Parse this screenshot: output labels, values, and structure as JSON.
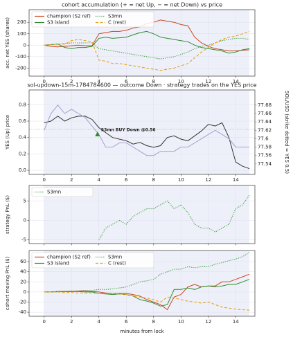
{
  "chart_data": [
    {
      "type": "line",
      "title": "cohort accumulation (+ = net Up, − = net Down) vs price",
      "ylabel": "acc. net YES (shares)",
      "xlim": [
        -1.1,
        15.4
      ],
      "xticks": [
        0,
        2,
        4,
        6,
        8,
        10,
        12,
        14
      ],
      "ylim": [
        -270,
        310
      ],
      "yticks": [
        -200,
        -100,
        0,
        100,
        200
      ],
      "grid": true,
      "legend": "upper left",
      "legend_columns": 2,
      "shade": [
        0,
        15
      ],
      "x": [
        0,
        0.5,
        1,
        1.5,
        2,
        2.5,
        3,
        3.5,
        4,
        4.5,
        5,
        5.5,
        6,
        6.5,
        7,
        7.5,
        8,
        8.5,
        9,
        9.5,
        10,
        10.5,
        11,
        11.5,
        12,
        12.5,
        13,
        13.5,
        14,
        14.5,
        15
      ],
      "series": [
        {
          "name": "champion (S2 ref)",
          "color": "#c8461e",
          "dash": "solid",
          "values": [
            0,
            -10,
            -15,
            -10,
            -5,
            0,
            -5,
            -5,
            100,
            110,
            120,
            120,
            130,
            150,
            160,
            190,
            200,
            220,
            210,
            200,
            180,
            170,
            70,
            20,
            -10,
            -30,
            -40,
            -50,
            -50,
            -45,
            -40
          ]
        },
        {
          "name": "S3 island",
          "color": "#2e8b2e",
          "dash": "solid",
          "values": [
            0,
            5,
            10,
            -20,
            -30,
            -20,
            -20,
            -10,
            60,
            70,
            60,
            65,
            70,
            90,
            110,
            120,
            100,
            70,
            60,
            50,
            40,
            30,
            0,
            -20,
            -30,
            -40,
            -50,
            -70,
            -60,
            -40,
            -30
          ]
        },
        {
          "name": "S3mn",
          "color": "#3a9a3a",
          "dash": "dotted",
          "values": [
            0,
            5,
            10,
            15,
            20,
            20,
            20,
            20,
            -30,
            -40,
            -50,
            -60,
            -70,
            -80,
            -90,
            -100,
            -110,
            -120,
            -110,
            -100,
            -80,
            -60,
            -30,
            -10,
            0,
            20,
            40,
            50,
            60,
            60,
            50
          ]
        },
        {
          "name": "C (rest)",
          "color": "#e8a317",
          "dash": "dashed",
          "values": [
            0,
            5,
            10,
            10,
            40,
            50,
            40,
            30,
            -130,
            -140,
            -160,
            -160,
            -170,
            -180,
            -190,
            -200,
            -210,
            -220,
            -210,
            -200,
            -180,
            -160,
            -110,
            -60,
            -20,
            20,
            50,
            70,
            80,
            100,
            120
          ]
        }
      ]
    },
    {
      "type": "line",
      "title": "sol-updown-15m-1784784600 — outcome Down · strategy trades on the YES price",
      "ylabel": "YES (Up) price",
      "xlim": [
        -1.1,
        15.4
      ],
      "xticks": [
        0,
        2,
        4,
        6,
        8,
        10,
        12,
        14
      ],
      "ylim": [
        -0.05,
        0.98
      ],
      "yticks": [
        {
          "value": 0,
          "label": "0.0"
        },
        0.2,
        0.4,
        0.6,
        0.8
      ],
      "y2label": "SOL/USD (strike dotted = YES 0.5)",
      "y2lim": [
        77.515,
        77.716
      ],
      "y2ticks": [
        77.54,
        77.56,
        77.58,
        77.6,
        77.62,
        77.64,
        77.66,
        77.68
      ],
      "grid": true,
      "shade": [
        0,
        15
      ],
      "reference_line": 0.5,
      "x": [
        0,
        0.5,
        1,
        1.5,
        2,
        2.5,
        3,
        3.5,
        4,
        4.5,
        5,
        5.5,
        6,
        6.5,
        7,
        7.5,
        8,
        8.5,
        9,
        9.5,
        10,
        10.5,
        11,
        11.5,
        12,
        12.5,
        13,
        13.5,
        14,
        14.5,
        15
      ],
      "series": [
        {
          "name": "YES",
          "color": "#333333",
          "dash": "solid",
          "values": [
            0.58,
            0.6,
            0.66,
            0.6,
            0.64,
            0.66,
            0.66,
            0.62,
            0.52,
            0.46,
            0.4,
            0.38,
            0.36,
            0.32,
            0.34,
            0.3,
            0.28,
            0.3,
            0.4,
            0.42,
            0.38,
            0.36,
            0.42,
            0.48,
            0.56,
            0.54,
            0.58,
            0.4,
            0.1,
            0.05,
            0.02
          ]
        },
        {
          "name": "SOL/USD",
          "color": "#a99bd0",
          "dash": "solid",
          "axis": "y2",
          "values": [
            77.62,
            77.66,
            77.68,
            77.66,
            77.67,
            77.66,
            77.65,
            77.63,
            77.61,
            77.58,
            77.58,
            77.59,
            77.59,
            77.58,
            77.57,
            77.56,
            77.56,
            77.57,
            77.57,
            77.57,
            77.58,
            77.58,
            77.59,
            77.6,
            77.61,
            77.62,
            77.61,
            77.6,
            77.58,
            77.58,
            77.58
          ]
        }
      ],
      "markers": [
        {
          "x": 3.9,
          "y": 0.44,
          "label": "S3mn BUY Down @0.56",
          "color": "#2e8b2e"
        }
      ]
    },
    {
      "type": "line",
      "ylabel": "strategy PnL ($)",
      "xlim": [
        -1.1,
        15.4
      ],
      "xticks": [
        0,
        2,
        4,
        6,
        8,
        10,
        12,
        14
      ],
      "show_xtick_labels": false,
      "ylim": [
        -6,
        9
      ],
      "yticks": [
        -5,
        0,
        5
      ],
      "grid": true,
      "legend": "upper left",
      "legend_columns": 1,
      "shade": [
        0,
        15
      ],
      "x": [
        4,
        4.5,
        5,
        5.5,
        6,
        6.5,
        7,
        7.5,
        8,
        8.5,
        9,
        9.5,
        10,
        10.5,
        11,
        11.5,
        12,
        12.5,
        13,
        13.5,
        14,
        14.5,
        15
      ],
      "series": [
        {
          "name": "S3mn",
          "color": "#3a9a3a",
          "dash": "dotted",
          "values": [
            -5,
            -2,
            -1,
            0,
            -1,
            1,
            2,
            3,
            3,
            4,
            5,
            3,
            4,
            2,
            -1,
            -2,
            -2,
            -3,
            -2,
            -1,
            3,
            4,
            6.5
          ]
        }
      ]
    },
    {
      "type": "line",
      "ylabel": "cohort moving PnL ($)",
      "xlabel": "minutes from lock",
      "xlim": [
        -1.1,
        15.4
      ],
      "xticks": [
        0,
        2,
        4,
        6,
        8,
        10,
        12,
        14
      ],
      "ylim": [
        -48,
        82
      ],
      "yticks": [
        -40,
        -20,
        0,
        20,
        40,
        60
      ],
      "grid": true,
      "legend": "upper left",
      "legend_columns": 2,
      "shade": [
        0,
        15
      ],
      "x": [
        0,
        0.5,
        1,
        1.5,
        2,
        2.5,
        3,
        3.5,
        4,
        4.5,
        5,
        5.5,
        6,
        6.5,
        7,
        7.5,
        8,
        8.5,
        9,
        9.5,
        10,
        10.5,
        11,
        11.5,
        12,
        12.5,
        13,
        13.5,
        14,
        14.5,
        15
      ],
      "series": [
        {
          "name": "champion (S2 ref)",
          "color": "#c8461e",
          "dash": "solid",
          "values": [
            0,
            0,
            1,
            1,
            1,
            2,
            2,
            1,
            0,
            -2,
            -3,
            -3,
            -3,
            -5,
            -8,
            -15,
            -20,
            -25,
            -35,
            -10,
            -5,
            10,
            15,
            10,
            12,
            12,
            20,
            20,
            25,
            30,
            35
          ]
        },
        {
          "name": "S3 island",
          "color": "#2e8b2e",
          "dash": "solid",
          "values": [
            0,
            0,
            1,
            1,
            1,
            1,
            0,
            0,
            -3,
            -4,
            -5,
            -4,
            -5,
            -8,
            -15,
            -18,
            -22,
            -28,
            -25,
            5,
            5,
            8,
            5,
            10,
            12,
            10,
            12,
            15,
            15,
            20,
            25
          ]
        },
        {
          "name": "S3mn",
          "color": "#3a9a3a",
          "dash": "dotted",
          "values": [
            0,
            0,
            0,
            1,
            2,
            2,
            3,
            3,
            5,
            5,
            6,
            8,
            10,
            15,
            20,
            22,
            25,
            35,
            40,
            45,
            45,
            50,
            48,
            50,
            50,
            55,
            58,
            62,
            65,
            70,
            78
          ]
        },
        {
          "name": "C (rest)",
          "color": "#e8a317",
          "dash": "dashed",
          "values": [
            0,
            0,
            0,
            -1,
            -1,
            -2,
            -2,
            -2,
            -3,
            -3,
            -3,
            -4,
            -5,
            -8,
            -10,
            -12,
            -15,
            -20,
            -10,
            -12,
            -15,
            -18,
            -20,
            -22,
            -20,
            -25,
            -30,
            -32,
            -34,
            -35,
            -36
          ]
        }
      ]
    }
  ]
}
